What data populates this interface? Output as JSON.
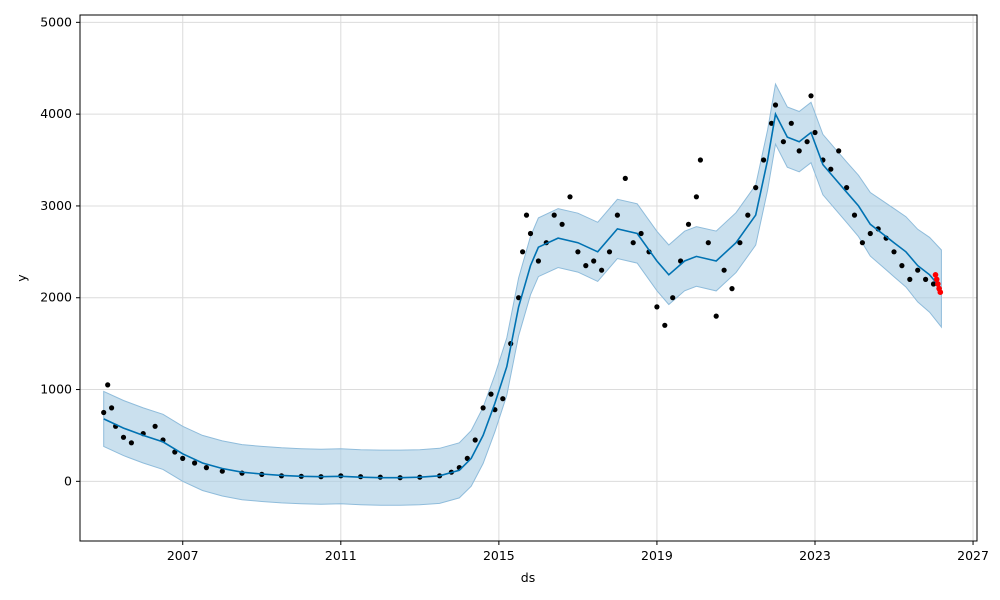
{
  "chart_data": {
    "type": "scatter",
    "title": "",
    "xlabel": "ds",
    "ylabel": "y",
    "xlim": [
      2004.4,
      2027.1
    ],
    "ylim": [
      -650,
      5080
    ],
    "x_ticks": [
      2007,
      2011,
      2015,
      2019,
      2023,
      2027
    ],
    "y_ticks": [
      0,
      1000,
      2000,
      3000,
      4000,
      5000
    ],
    "grid": true,
    "colors": {
      "observed": "#000000",
      "recent": "#ff0000",
      "forecast": "#0072b2",
      "interval": "#a6cbe3"
    },
    "observed": [
      [
        2005.0,
        750
      ],
      [
        2005.1,
        1050
      ],
      [
        2005.2,
        800
      ],
      [
        2005.3,
        600
      ],
      [
        2005.5,
        480
      ],
      [
        2005.7,
        420
      ],
      [
        2006.0,
        520
      ],
      [
        2006.3,
        600
      ],
      [
        2006.5,
        450
      ],
      [
        2006.8,
        320
      ],
      [
        2007.0,
        250
      ],
      [
        2007.3,
        200
      ],
      [
        2007.6,
        150
      ],
      [
        2008.0,
        110
      ],
      [
        2008.5,
        90
      ],
      [
        2009.0,
        75
      ],
      [
        2009.5,
        60
      ],
      [
        2010.0,
        55
      ],
      [
        2010.5,
        50
      ],
      [
        2011.0,
        60
      ],
      [
        2011.5,
        50
      ],
      [
        2012.0,
        45
      ],
      [
        2012.5,
        40
      ],
      [
        2013.0,
        45
      ],
      [
        2013.5,
        60
      ],
      [
        2013.8,
        100
      ],
      [
        2014.0,
        150
      ],
      [
        2014.2,
        250
      ],
      [
        2014.4,
        450
      ],
      [
        2014.6,
        800
      ],
      [
        2014.8,
        950
      ],
      [
        2014.9,
        780
      ],
      [
        2015.1,
        900
      ],
      [
        2015.3,
        1500
      ],
      [
        2015.5,
        2000
      ],
      [
        2015.6,
        2500
      ],
      [
        2015.7,
        2900
      ],
      [
        2015.8,
        2700
      ],
      [
        2016.0,
        2400
      ],
      [
        2016.2,
        2600
      ],
      [
        2016.4,
        2900
      ],
      [
        2016.6,
        2800
      ],
      [
        2016.8,
        3100
      ],
      [
        2017.0,
        2500
      ],
      [
        2017.2,
        2350
      ],
      [
        2017.4,
        2400
      ],
      [
        2017.6,
        2300
      ],
      [
        2017.8,
        2500
      ],
      [
        2018.0,
        2900
      ],
      [
        2018.2,
        3300
      ],
      [
        2018.4,
        2600
      ],
      [
        2018.6,
        2700
      ],
      [
        2018.8,
        2500
      ],
      [
        2019.0,
        1900
      ],
      [
        2019.2,
        1700
      ],
      [
        2019.4,
        2000
      ],
      [
        2019.6,
        2400
      ],
      [
        2019.8,
        2800
      ],
      [
        2020.0,
        3100
      ],
      [
        2020.1,
        3500
      ],
      [
        2020.3,
        2600
      ],
      [
        2020.5,
        1800
      ],
      [
        2020.7,
        2300
      ],
      [
        2020.9,
        2100
      ],
      [
        2021.1,
        2600
      ],
      [
        2021.3,
        2900
      ],
      [
        2021.5,
        3200
      ],
      [
        2021.7,
        3500
      ],
      [
        2021.9,
        3900
      ],
      [
        2022.0,
        4100
      ],
      [
        2022.2,
        3700
      ],
      [
        2022.4,
        3900
      ],
      [
        2022.6,
        3600
      ],
      [
        2022.8,
        3700
      ],
      [
        2022.9,
        4200
      ],
      [
        2023.0,
        3800
      ],
      [
        2023.2,
        3500
      ],
      [
        2023.4,
        3400
      ],
      [
        2023.6,
        3600
      ],
      [
        2023.8,
        3200
      ],
      [
        2024.0,
        2900
      ],
      [
        2024.2,
        2600
      ],
      [
        2024.4,
        2700
      ],
      [
        2024.6,
        2750
      ],
      [
        2024.8,
        2650
      ],
      [
        2025.0,
        2500
      ],
      [
        2025.2,
        2350
      ],
      [
        2025.4,
        2200
      ],
      [
        2025.6,
        2300
      ],
      [
        2025.8,
        2200
      ],
      [
        2026.0,
        2150
      ]
    ],
    "recent": [
      [
        2026.05,
        2250
      ],
      [
        2026.08,
        2200
      ],
      [
        2026.11,
        2150
      ],
      [
        2026.14,
        2100
      ],
      [
        2026.17,
        2060
      ]
    ],
    "forecast": [
      [
        2005.0,
        680
      ],
      [
        2005.5,
        580
      ],
      [
        2006.0,
        500
      ],
      [
        2006.5,
        430
      ],
      [
        2007.0,
        300
      ],
      [
        2007.5,
        200
      ],
      [
        2008.0,
        140
      ],
      [
        2008.5,
        100
      ],
      [
        2009.0,
        80
      ],
      [
        2009.5,
        65
      ],
      [
        2010.0,
        55
      ],
      [
        2010.5,
        50
      ],
      [
        2011.0,
        55
      ],
      [
        2011.5,
        45
      ],
      [
        2012.0,
        40
      ],
      [
        2012.5,
        40
      ],
      [
        2013.0,
        45
      ],
      [
        2013.5,
        60
      ],
      [
        2014.0,
        120
      ],
      [
        2014.3,
        250
      ],
      [
        2014.6,
        500
      ],
      [
        2014.9,
        850
      ],
      [
        2015.2,
        1250
      ],
      [
        2015.5,
        1900
      ],
      [
        2015.8,
        2350
      ],
      [
        2016.0,
        2550
      ],
      [
        2016.5,
        2650
      ],
      [
        2017.0,
        2600
      ],
      [
        2017.5,
        2500
      ],
      [
        2018.0,
        2750
      ],
      [
        2018.5,
        2700
      ],
      [
        2019.0,
        2400
      ],
      [
        2019.3,
        2250
      ],
      [
        2019.7,
        2400
      ],
      [
        2020.0,
        2450
      ],
      [
        2020.5,
        2400
      ],
      [
        2021.0,
        2600
      ],
      [
        2021.5,
        2900
      ],
      [
        2021.8,
        3500
      ],
      [
        2022.0,
        4000
      ],
      [
        2022.3,
        3750
      ],
      [
        2022.6,
        3700
      ],
      [
        2022.9,
        3800
      ],
      [
        2023.2,
        3450
      ],
      [
        2023.5,
        3300
      ],
      [
        2023.8,
        3150
      ],
      [
        2024.1,
        3000
      ],
      [
        2024.4,
        2800
      ],
      [
        2024.7,
        2700
      ],
      [
        2025.0,
        2600
      ],
      [
        2025.3,
        2500
      ],
      [
        2025.6,
        2350
      ],
      [
        2025.9,
        2250
      ],
      [
        2026.2,
        2100
      ]
    ],
    "interval_halfwidth": [
      [
        2005.0,
        300
      ],
      [
        2014.0,
        300
      ],
      [
        2016.0,
        320
      ],
      [
        2024.0,
        330
      ],
      [
        2026.2,
        420
      ]
    ]
  }
}
